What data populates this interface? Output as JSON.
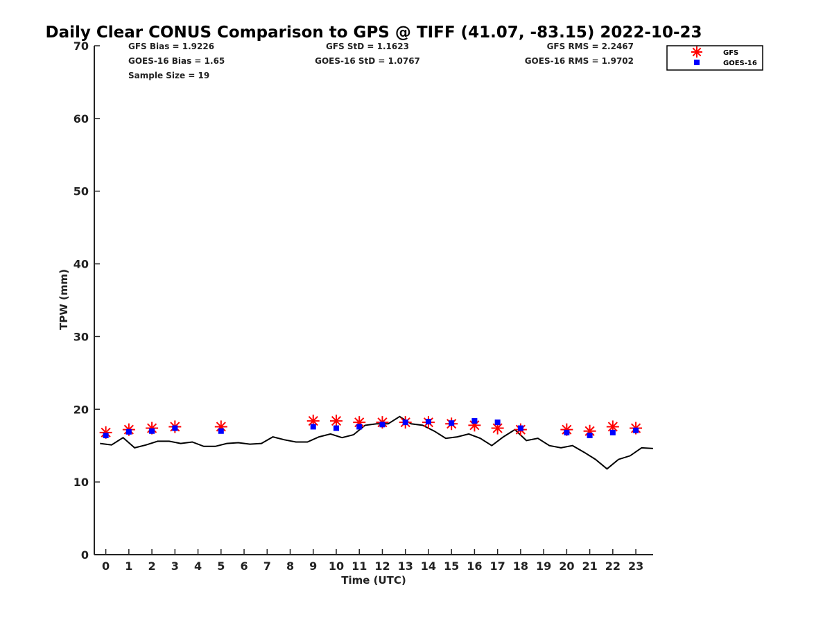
{
  "chart_data": {
    "type": "scatter",
    "title": "Daily Clear CONUS Comparison to GPS @ TIFF (41.07, -83.15) 2022-10-23",
    "xlabel": "Time (UTC)",
    "ylabel": "TPW (mm)",
    "xlim": [
      -0.5,
      23.75
    ],
    "ylim": [
      0,
      70
    ],
    "x_ticks": [
      "0",
      "1",
      "2",
      "3",
      "4",
      "5",
      "6",
      "7",
      "8",
      "9",
      "10",
      "11",
      "12",
      "13",
      "14",
      "15",
      "16",
      "17",
      "18",
      "19",
      "20",
      "21",
      "22",
      "23"
    ],
    "y_ticks": [
      "0",
      "10",
      "20",
      "30",
      "40",
      "50",
      "60",
      "70"
    ],
    "grid": false,
    "legend_position": "top-right",
    "stats": {
      "gfs_bias": "GFS Bias = 1.9226",
      "goes_bias": "GOES-16 Bias = 1.65",
      "sample_size": "Sample Size = 19",
      "gfs_std": "GFS StD = 1.1623",
      "goes_std": "GOES-16 StD = 1.0767",
      "gfs_rms": "GFS RMS = 2.2467",
      "goes_rms": "GOES-16 RMS = 1.9702"
    },
    "series": [
      {
        "name": "GFS",
        "marker": "asterisk",
        "color": "#ff0000",
        "x": [
          0,
          1,
          2,
          3,
          5,
          9,
          10,
          11,
          12,
          13,
          14,
          15,
          16,
          17,
          18,
          20,
          21,
          22,
          23
        ],
        "values": [
          16.8,
          17.2,
          17.4,
          17.6,
          17.6,
          18.4,
          18.4,
          18.2,
          18.2,
          18.2,
          18.2,
          18.0,
          17.8,
          17.4,
          17.2,
          17.2,
          17.0,
          17.6,
          17.4
        ]
      },
      {
        "name": "GOES-16",
        "marker": "square",
        "color": "#0000ff",
        "x": [
          0,
          1,
          2,
          3,
          5,
          9,
          10,
          11,
          12,
          13,
          14,
          15,
          16,
          17,
          18,
          20,
          21,
          22,
          23
        ],
        "values": [
          16.4,
          16.9,
          17.0,
          17.4,
          17.0,
          17.6,
          17.4,
          17.6,
          17.9,
          18.2,
          18.3,
          18.1,
          18.4,
          18.2,
          17.4,
          16.8,
          16.4,
          16.8,
          17.1
        ]
      },
      {
        "line": true,
        "color": "#000000",
        "x": [
          -0.25,
          0.25,
          0.75,
          1.25,
          1.75,
          2.25,
          2.75,
          3.25,
          3.75,
          4.25,
          4.75,
          5.25,
          5.75,
          6.25,
          6.75,
          7.25,
          7.75,
          8.25,
          8.75,
          9.25,
          9.75,
          10.25,
          10.75,
          11.25,
          11.75,
          12.25,
          12.75,
          13.25,
          13.75,
          14.25,
          14.75,
          15.25,
          15.75,
          16.25,
          16.75,
          17.25,
          17.75,
          18.25,
          18.75,
          19.25,
          19.75,
          20.25,
          20.75,
          21.25,
          21.75,
          22.25,
          22.75,
          23.25,
          23.75
        ],
        "values": [
          15.3,
          15.1,
          16.1,
          14.7,
          15.1,
          15.6,
          15.6,
          15.3,
          15.5,
          14.9,
          14.9,
          15.3,
          15.4,
          15.2,
          15.3,
          16.2,
          15.8,
          15.5,
          15.5,
          16.2,
          16.6,
          16.1,
          16.5,
          17.8,
          18.0,
          18.0,
          19.0,
          18.0,
          17.8,
          17.0,
          16.0,
          16.2,
          16.6,
          16.0,
          15.0,
          16.2,
          17.2,
          15.7,
          16.0,
          15.0,
          14.7,
          15.0,
          14.1,
          13.1,
          11.8,
          13.1,
          13.6,
          14.7,
          14.6
        ]
      }
    ]
  }
}
